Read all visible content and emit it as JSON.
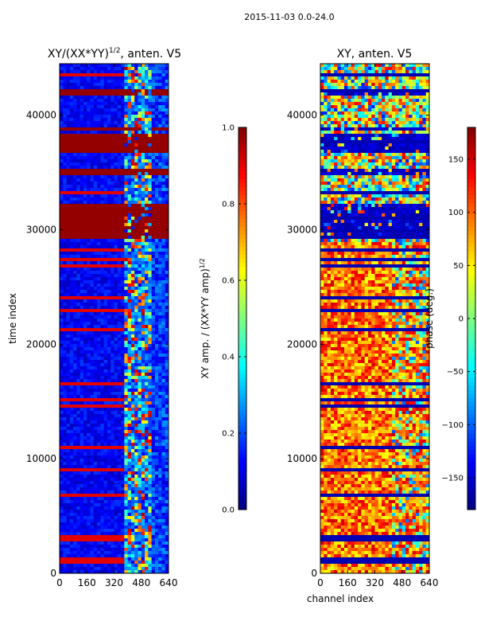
{
  "chart_data": {
    "suptitle": "2015-11-03 0.0-24.0",
    "panels": [
      {
        "type": "heatmap",
        "title": "XY/(XX*YY)",
        "title_sup": "1/2",
        "title_suffix": ", anten. V5",
        "xlim": [
          0,
          640
        ],
        "ylim": [
          0,
          44500
        ],
        "xticks": [
          0,
          160,
          320,
          480,
          640
        ],
        "yticks": [
          0,
          10000,
          20000,
          30000,
          40000
        ],
        "ylabel": "time index",
        "colormap": "jet",
        "colorbar": {
          "range": [
            0.0,
            1.0
          ],
          "ticks": [
            "0.0",
            "0.2",
            "0.4",
            "0.6",
            "0.8",
            "1.0"
          ],
          "tick_values": [
            0.0,
            0.2,
            0.4,
            0.6,
            0.8,
            1.0
          ],
          "label": "XY amp. / (XX*YY amp)",
          "label_sup": "1/2"
        },
        "saturated_time_bands": [
          [
            29200,
            32200
          ],
          [
            34800,
            35200
          ],
          [
            36600,
            38400
          ],
          [
            38600,
            39000
          ],
          [
            41800,
            42200
          ]
        ]
      },
      {
        "type": "heatmap",
        "title": "XY, anten. V5",
        "xlim": [
          0,
          640
        ],
        "ylim": [
          0,
          44500
        ],
        "xticks": [
          0,
          160,
          320,
          480,
          640
        ],
        "yticks": [
          0,
          10000,
          20000,
          30000,
          40000
        ],
        "xlabel": "channel index",
        "colormap": "jet",
        "colorbar": {
          "range": [
            -180,
            180
          ],
          "ticks": [
            "−150",
            "−100",
            "−50",
            "0",
            "50",
            "100",
            "150"
          ],
          "tick_values": [
            -150,
            -100,
            -50,
            0,
            50,
            100,
            150
          ],
          "label": "phase (deg.)"
        },
        "low_phase_time_bands": [
          [
            29200,
            32200
          ],
          [
            34800,
            35200
          ],
          [
            36600,
            38400
          ],
          [
            38600,
            39000
          ],
          [
            41800,
            42200
          ]
        ]
      }
    ]
  }
}
